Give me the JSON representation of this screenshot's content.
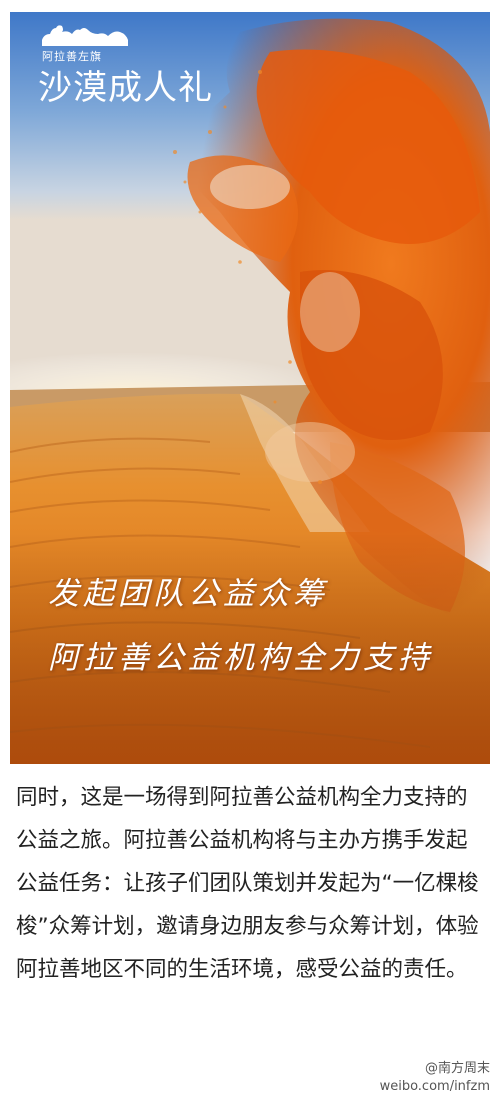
{
  "poster": {
    "logo_text": "阿拉善左旗",
    "title": "沙漠成人礼",
    "slogan_line1": "发起团队公益众筹",
    "slogan_line2": "阿拉善公益机构全力支持"
  },
  "article": {
    "paragraph": "同时，这是一场得到阿拉善公益机构全力支持的公益之旅。阿拉善公益机构将与主办方携手发起公益任务：让孩子们团队策划并发起为“一亿棵梭梭”众筹计划，邀请身边朋友参与众筹计划，体验阿拉善地区不同的生活环境，感受公益的责任。"
  },
  "watermark": {
    "name": "@南方周末",
    "url": "weibo.com/infzm"
  }
}
